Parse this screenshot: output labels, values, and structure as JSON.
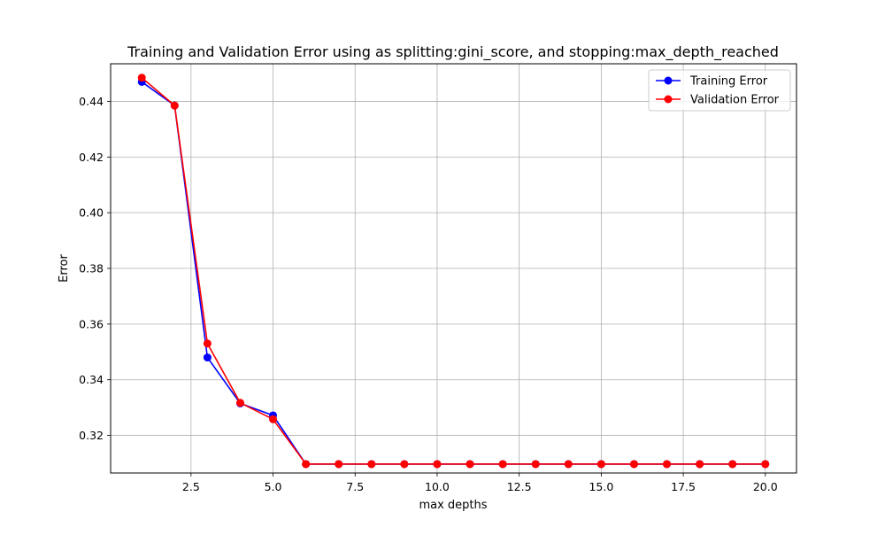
{
  "chart_data": {
    "type": "line",
    "title": "Training and Validation Error using as splitting:gini_score, and stopping:max_depth_reached",
    "xlabel": "max depths",
    "ylabel": "Error",
    "x": [
      1,
      2,
      3,
      4,
      5,
      6,
      7,
      8,
      9,
      10,
      11,
      12,
      13,
      14,
      15,
      16,
      17,
      18,
      19,
      20
    ],
    "xlim": [
      0.05,
      20.95
    ],
    "ylim": [
      0.3065,
      0.4535
    ],
    "xticks": [
      2.5,
      5.0,
      7.5,
      10.0,
      12.5,
      15.0,
      17.5,
      20.0
    ],
    "xtick_labels": [
      "2.5",
      "5.0",
      "7.5",
      "10.0",
      "12.5",
      "15.0",
      "17.5",
      "20.0"
    ],
    "yticks": [
      0.32,
      0.34,
      0.36,
      0.38,
      0.4,
      0.42,
      0.44
    ],
    "ytick_labels": [
      "0.32",
      "0.34",
      "0.36",
      "0.38",
      "0.40",
      "0.42",
      "0.44"
    ],
    "grid": true,
    "legend_position": "upper right",
    "series": [
      {
        "name": "Training Error",
        "color": "#0000ff",
        "marker": "circle",
        "values": [
          0.447,
          0.4385,
          0.348,
          0.3315,
          0.3272,
          0.3097,
          0.3097,
          0.3097,
          0.3097,
          0.3097,
          0.3097,
          0.3097,
          0.3097,
          0.3097,
          0.3097,
          0.3097,
          0.3097,
          0.3097,
          0.3097,
          0.3097
        ]
      },
      {
        "name": "Validation Error",
        "color": "#ff0000",
        "marker": "circle",
        "values": [
          0.4485,
          0.4385,
          0.353,
          0.3317,
          0.3258,
          0.3097,
          0.3097,
          0.3097,
          0.3097,
          0.3097,
          0.3097,
          0.3097,
          0.3097,
          0.3097,
          0.3097,
          0.3097,
          0.3097,
          0.3097,
          0.3097,
          0.3097
        ]
      }
    ]
  }
}
